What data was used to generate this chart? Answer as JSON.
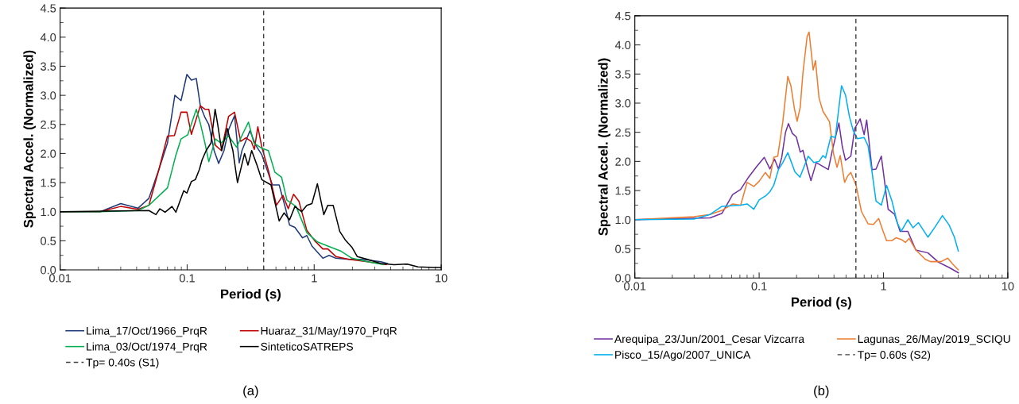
{
  "chart_data": [
    {
      "type": "line",
      "xlabel": "Period (s)",
      "ylabel": "Spectral Accel. (Normalized)",
      "log": "x",
      "legend": "bottom",
      "xlim": [
        0.01,
        10
      ],
      "ylim": [
        0,
        4.5
      ],
      "xticks": [
        0.01,
        0.1,
        1,
        10
      ],
      "yticks": [
        {
          "value": 0,
          "label": "0.0"
        },
        {
          "value": 0.5,
          "label": "0.5"
        },
        {
          "value": 1,
          "label": "1.0"
        },
        {
          "value": 1.5,
          "label": "1.5"
        },
        {
          "value": 2,
          "label": "2.0"
        },
        {
          "value": 2.5,
          "label": "2.5"
        },
        {
          "value": 3,
          "label": "3.0"
        },
        {
          "value": 3.5,
          "label": "3.5"
        },
        {
          "value": 4,
          "label": "4.0"
        },
        {
          "value": 4.5,
          "label": "4.5"
        }
      ],
      "series": [
        {
          "name": "Lima_17/Oct/1966_PrqR",
          "color": "#1f3a7a",
          "x": [
            0.01,
            0.0207,
            0.03,
            0.041,
            0.05,
            0.06,
            0.07,
            0.08,
            0.0895,
            0.0995,
            0.108,
            0.118,
            0.127,
            0.138,
            0.148,
            0.163,
            0.177,
            0.195,
            0.212,
            0.236,
            0.257,
            0.27,
            0.312,
            0.347,
            0.387,
            0.469,
            0.53,
            0.596,
            0.64,
            0.705,
            0.81,
            0.875,
            0.96,
            1.17,
            1.31,
            1.48,
            1.88,
            2.4,
            3.35,
            3.78
          ],
          "values": [
            1.0,
            1.0,
            1.14,
            1.06,
            1.23,
            1.73,
            2.18,
            3.0,
            2.91,
            3.36,
            3.26,
            3.29,
            2.82,
            2.62,
            2.5,
            2.05,
            1.83,
            2.05,
            2.41,
            2.65,
            1.84,
            2.05,
            2.39,
            2.14,
            1.98,
            1.46,
            1.46,
            1.05,
            0.77,
            0.73,
            0.55,
            0.59,
            0.41,
            0.2,
            0.25,
            0.2,
            0.18,
            0.18,
            0.14,
            0.11
          ]
        },
        {
          "name": "Huaraz_31/May/1970_PrqR",
          "color": "#c00000",
          "x": [
            0.01,
            0.0207,
            0.03,
            0.041,
            0.05,
            0.06,
            0.07,
            0.0794,
            0.0895,
            0.0995,
            0.108,
            0.127,
            0.138,
            0.148,
            0.167,
            0.186,
            0.212,
            0.236,
            0.264,
            0.29,
            0.319,
            0.338,
            0.36,
            0.387,
            0.436,
            0.504,
            0.568,
            0.625,
            0.688,
            0.758,
            0.875,
            1.01,
            1.17,
            1.28,
            1.48,
            1.88,
            2.63,
            3.69
          ],
          "values": [
            1.0,
            1.0,
            1.09,
            1.04,
            1.11,
            1.73,
            2.3,
            2.31,
            2.71,
            2.71,
            2.33,
            2.82,
            2.76,
            2.76,
            2.14,
            2.05,
            2.64,
            2.71,
            2.21,
            2.27,
            2.21,
            2.07,
            2.46,
            2.11,
            1.71,
            1.11,
            1.28,
            1.05,
            1.3,
            1.18,
            0.68,
            0.5,
            0.36,
            0.36,
            0.23,
            0.18,
            0.14,
            0.09
          ]
        },
        {
          "name": "Lima_03/Oct/1974_PrqR",
          "color": "#00b050",
          "x": [
            0.01,
            0.0207,
            0.041,
            0.05,
            0.07,
            0.081,
            0.0895,
            0.101,
            0.118,
            0.127,
            0.138,
            0.148,
            0.167,
            0.184,
            0.212,
            0.245,
            0.277,
            0.304,
            0.335,
            0.387,
            0.436,
            0.49,
            0.554,
            0.61,
            0.72,
            0.875,
            1.06,
            1.28,
            1.63,
            1.98,
            2.63,
            3.52
          ],
          "values": [
            1.0,
            1.0,
            1.02,
            1.11,
            1.41,
            1.95,
            2.25,
            2.32,
            2.76,
            2.52,
            2.18,
            1.86,
            2.25,
            2.18,
            2.3,
            2.11,
            2.36,
            2.54,
            2.18,
            2.09,
            2.05,
            1.68,
            1.59,
            1.2,
            1.09,
            0.64,
            0.48,
            0.41,
            0.32,
            0.2,
            0.14,
            0.09
          ]
        },
        {
          "name": "SinteticoSATREPS",
          "color": "#000000",
          "x": [
            0.01,
            0.05,
            0.0568,
            0.061,
            0.067,
            0.076,
            0.0815,
            0.094,
            0.0995,
            0.108,
            0.116,
            0.125,
            0.131,
            0.141,
            0.154,
            0.166,
            0.174,
            0.187,
            0.207,
            0.229,
            0.249,
            0.283,
            0.301,
            0.322,
            0.352,
            0.387,
            0.457,
            0.53,
            0.58,
            0.64,
            0.705,
            0.795,
            0.875,
            0.96,
            1.06,
            1.19,
            1.28,
            1.41,
            1.59,
            1.75,
            1.98,
            2.18,
            2.63,
            3.35,
            4.26,
            5.4,
            6.56,
            8.75,
            10
          ],
          "values": [
            1.0,
            1.02,
            0.95,
            1.05,
            0.99,
            1.09,
            0.99,
            1.36,
            1.32,
            1.52,
            1.55,
            1.73,
            1.89,
            2.05,
            2.18,
            2.76,
            2.5,
            2.05,
            2.43,
            2.05,
            1.5,
            2.0,
            1.8,
            2.05,
            1.82,
            1.55,
            1.46,
            0.84,
            0.98,
            0.86,
            1.09,
            1.0,
            1.11,
            1.14,
            1.48,
            0.95,
            1.11,
            1.11,
            0.66,
            0.52,
            0.39,
            0.23,
            0.18,
            0.11,
            0.09,
            0.1,
            0.05,
            0.04,
            0.04
          ]
        }
      ],
      "ref_lines": [
        {
          "axis": "x",
          "value": 0.4,
          "label": "Tp= 0.40s (S1)",
          "color": "#404040",
          "line_style": "dashed"
        }
      ],
      "annotations": [
        "(a)"
      ]
    },
    {
      "type": "line",
      "xlabel": "Period (s)",
      "ylabel": "Spectral Accel. (Normalized)",
      "log": "x",
      "legend": "bottom",
      "xlim": [
        0.01,
        10
      ],
      "ylim": [
        0,
        4.5
      ],
      "xticks": [
        0.01,
        0.1,
        1,
        10
      ],
      "yticks": [
        {
          "value": 0,
          "label": "0.0"
        },
        {
          "value": 0.5,
          "label": "0.5"
        },
        {
          "value": 1,
          "label": "1.0"
        },
        {
          "value": 1.5,
          "label": "1.5"
        },
        {
          "value": 2,
          "label": "2.0"
        },
        {
          "value": 2.5,
          "label": "2.5"
        },
        {
          "value": 3,
          "label": "3.0"
        },
        {
          "value": 3.5,
          "label": "3.5"
        },
        {
          "value": 4,
          "label": "4.0"
        },
        {
          "value": 4.5,
          "label": "4.5"
        }
      ],
      "series": [
        {
          "name": "Arequipa_23/Jun/2001_Cesar Vizcarra",
          "color": "#7030a0",
          "x": [
            0.01,
            0.0403,
            0.0503,
            0.0612,
            0.071,
            0.0822,
            0.0953,
            0.11,
            0.122,
            0.133,
            0.143,
            0.152,
            0.163,
            0.172,
            0.185,
            0.199,
            0.214,
            0.225,
            0.243,
            0.261,
            0.288,
            0.36,
            0.387,
            0.438,
            0.467,
            0.495,
            0.546,
            0.588,
            0.649,
            0.699,
            0.733,
            0.809,
            0.871,
            0.961,
            1.09,
            1.23,
            1.36,
            1.57,
            1.82,
            2.28,
            2.77,
            3.37,
            4.0
          ],
          "values": [
            1.0,
            1.03,
            1.11,
            1.43,
            1.52,
            1.73,
            1.91,
            2.07,
            1.87,
            2.04,
            1.87,
            2.07,
            2.5,
            2.65,
            2.48,
            2.42,
            2.16,
            2.19,
            1.91,
            1.67,
            1.98,
            1.86,
            2.18,
            2.66,
            2.25,
            2.02,
            2.09,
            2.57,
            2.73,
            2.46,
            2.71,
            1.86,
            1.87,
            2.09,
            1.18,
            1.09,
            0.8,
            0.8,
            0.48,
            0.43,
            0.27,
            0.18,
            0.09
          ]
        },
        {
          "name": "Lagunas_26/May/2019_SCIQU",
          "color": "#ed7d31",
          "x": [
            0.01,
            0.0299,
            0.0403,
            0.0503,
            0.0612,
            0.071,
            0.08,
            0.0906,
            0.1,
            0.112,
            0.122,
            0.131,
            0.141,
            0.155,
            0.17,
            0.18,
            0.192,
            0.202,
            0.214,
            0.225,
            0.243,
            0.252,
            0.272,
            0.284,
            0.303,
            0.326,
            0.368,
            0.396,
            0.423,
            0.449,
            0.487,
            0.515,
            0.546,
            0.602,
            0.665,
            0.751,
            0.83,
            0.916,
            0.986,
            1.06,
            1.17,
            1.26,
            1.39,
            1.5,
            1.61,
            1.82,
            2.17,
            2.39,
            2.91,
            3.29,
            3.63,
            4.0
          ],
          "values": [
            1.0,
            1.05,
            1.09,
            1.16,
            1.27,
            1.25,
            1.64,
            1.57,
            1.66,
            1.81,
            1.71,
            2.07,
            2.09,
            2.68,
            3.46,
            3.3,
            2.91,
            2.69,
            2.93,
            3.52,
            4.14,
            4.22,
            3.57,
            3.73,
            3.09,
            2.86,
            2.68,
            2.14,
            1.9,
            2.1,
            1.64,
            1.75,
            1.81,
            1.59,
            1.14,
            0.93,
            0.92,
            1.02,
            0.82,
            0.64,
            0.64,
            0.69,
            0.66,
            0.61,
            0.68,
            0.48,
            0.32,
            0.28,
            0.28,
            0.34,
            0.23,
            0.14
          ]
        },
        {
          "name": "Pisco_15/Ago/2007_UNICA",
          "color": "#00b0f0",
          "x": [
            0.01,
            0.0299,
            0.0403,
            0.0503,
            0.0597,
            0.071,
            0.08,
            0.0906,
            0.1,
            0.113,
            0.122,
            0.131,
            0.143,
            0.155,
            0.17,
            0.194,
            0.213,
            0.248,
            0.275,
            0.303,
            0.326,
            0.342,
            0.378,
            0.41,
            0.432,
            0.46,
            0.495,
            0.532,
            0.573,
            0.617,
            0.699,
            0.751,
            0.809,
            0.871,
            0.961,
            1.06,
            1.17,
            1.29,
            1.39,
            1.57,
            1.73,
            1.91,
            2.28,
            2.57,
            2.98,
            3.37,
            3.72,
            4.0
          ],
          "values": [
            1.0,
            1.01,
            1.09,
            1.23,
            1.24,
            1.25,
            1.27,
            1.18,
            1.34,
            1.41,
            1.48,
            1.59,
            1.86,
            1.98,
            2.15,
            1.82,
            1.73,
            2.09,
            1.98,
            2.0,
            2.1,
            2.06,
            2.43,
            2.41,
            2.82,
            3.3,
            3.14,
            2.77,
            2.52,
            2.39,
            2.41,
            2.27,
            1.82,
            1.32,
            1.25,
            1.59,
            1.32,
            0.95,
            0.8,
            1.0,
            0.86,
            0.95,
            0.7,
            0.86,
            1.07,
            0.91,
            0.7,
            0.46
          ]
        }
      ],
      "ref_lines": [
        {
          "axis": "x",
          "value": 0.6,
          "label": "Tp= 0.60s (S2)",
          "color": "#404040",
          "line_style": "dashed"
        }
      ],
      "annotations": [
        "(b)"
      ]
    }
  ]
}
